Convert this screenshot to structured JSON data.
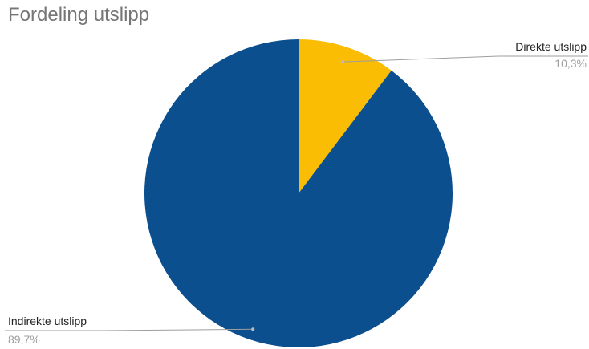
{
  "chart_data": {
    "type": "pie",
    "title": "Fordeling utslipp",
    "slices": [
      {
        "label": "Direkte utslipp",
        "value": 10.3,
        "display": "10,3%",
        "color": "#fbbc04"
      },
      {
        "label": "Indirekte utslipp",
        "value": 89.7,
        "display": "89,7%",
        "color": "#0b4f8e"
      }
    ],
    "start_angle": "12 o'clock",
    "direction": "clockwise",
    "legend": "none",
    "label_style": "callout lines with name and percentage"
  }
}
